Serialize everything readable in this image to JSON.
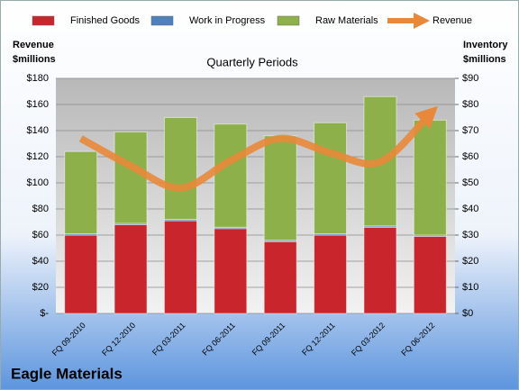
{
  "chart_data": {
    "type": "bar",
    "title": "Quarterly Periods",
    "caption": "Eagle Materials",
    "ylabel": [
      "Revenue",
      "$millions"
    ],
    "y2label": [
      "Inventory",
      "$millions"
    ],
    "categories": [
      "FQ 09-2010",
      "FQ 12-2010",
      "FQ 03-2011",
      "FQ 06-2011",
      "FQ 09-2011",
      "FQ 12-2011",
      "FQ 03-2012",
      "FQ 06-2012"
    ],
    "series": [
      {
        "name": "Finished Goods",
        "color": "#c8252c",
        "axis": "y2",
        "stack": true,
        "values": [
          30,
          34,
          35.5,
          32.5,
          27.5,
          30,
          33,
          29.5
        ]
      },
      {
        "name": "Work in Progress",
        "color": "#4f81bd",
        "axis": "y2",
        "stack": true,
        "values": [
          0.5,
          0.5,
          0.5,
          0.5,
          0.5,
          0.5,
          0.5,
          0.5
        ]
      },
      {
        "name": "Raw Materials",
        "color": "#8db04b",
        "axis": "y2",
        "stack": true,
        "values": [
          31.5,
          35,
          39,
          39.5,
          40,
          42.5,
          49.5,
          44
        ]
      },
      {
        "name": "Revenue",
        "color": "#e8883a",
        "type": "line",
        "values": [
          134,
          113,
          96,
          117,
          134,
          123,
          116,
          153
        ]
      }
    ],
    "ylim": [
      0,
      180
    ],
    "yticks": [
      {
        "value": 0,
        "label": "$-"
      },
      {
        "value": 20,
        "label": "$20"
      },
      {
        "value": 40,
        "label": "$40"
      },
      {
        "value": 60,
        "label": "$60"
      },
      {
        "value": 80,
        "label": "$80"
      },
      {
        "value": 100,
        "label": "$100"
      },
      {
        "value": 120,
        "label": "$120"
      },
      {
        "value": 140,
        "label": "$140"
      },
      {
        "value": 160,
        "label": "$160"
      },
      {
        "value": 180,
        "label": "$180"
      }
    ],
    "y2lim": [
      0,
      90
    ],
    "y2ticks": [
      {
        "value": 0,
        "label": "$0"
      },
      {
        "value": 10,
        "label": "$10"
      },
      {
        "value": 20,
        "label": "$20"
      },
      {
        "value": 30,
        "label": "$30"
      },
      {
        "value": 40,
        "label": "$40"
      },
      {
        "value": 50,
        "label": "$50"
      },
      {
        "value": 60,
        "label": "$60"
      },
      {
        "value": 70,
        "label": "$70"
      },
      {
        "value": 80,
        "label": "$80"
      },
      {
        "value": 90,
        "label": "$90"
      }
    ],
    "grid": true,
    "legend": "top"
  }
}
